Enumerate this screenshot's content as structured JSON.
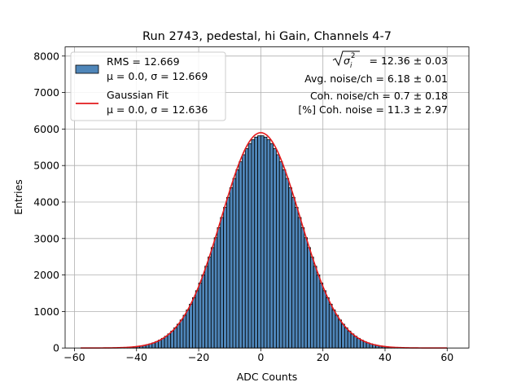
{
  "chart_data": {
    "type": "bar",
    "title": "Run 2743, pedestal, hi Gain, Channels 4-7",
    "xlabel": "ADC Counts",
    "ylabel": "Entries",
    "xlim": [
      -63,
      67
    ],
    "ylim": [
      0,
      8250
    ],
    "xticks": [
      -60,
      -40,
      -20,
      0,
      20,
      40,
      60
    ],
    "yticks": [
      0,
      1000,
      2000,
      3000,
      4000,
      5000,
      6000,
      7000,
      8000
    ],
    "grid": true,
    "histogram": {
      "bin_width": 1,
      "x_range": [
        -58,
        60
      ],
      "total_entries": 184800,
      "mean": 0.0,
      "sigma": 12.669,
      "color": "#4f86b9",
      "edge_color": "#000000"
    },
    "fit": {
      "name": "Gaussian Fit",
      "mean": 0.0,
      "sigma": 12.636,
      "peak": 5900,
      "x_range": [
        -58,
        60
      ],
      "color": "#e31a1c"
    },
    "legend": {
      "position": "top-left",
      "entries": [
        {
          "line1": "RMS = 12.669",
          "line2": "μ = 0.0, σ = 12.669",
          "kind": "patch"
        },
        {
          "line1": "Gaussian Fit",
          "line2": "μ = 0.0, σ = 12.636",
          "kind": "line"
        }
      ]
    },
    "annotations": {
      "sigma_sum_value": "= 12.36 ± 0.03",
      "avg_noise": "Avg. noise/ch = 6.18 ± 0.01",
      "coh_noise": "Coh. noise/ch = 0.7 ± 0.18",
      "coh_noise_pct": "[%] Coh. noise = 11.3 ± 2.97"
    }
  }
}
